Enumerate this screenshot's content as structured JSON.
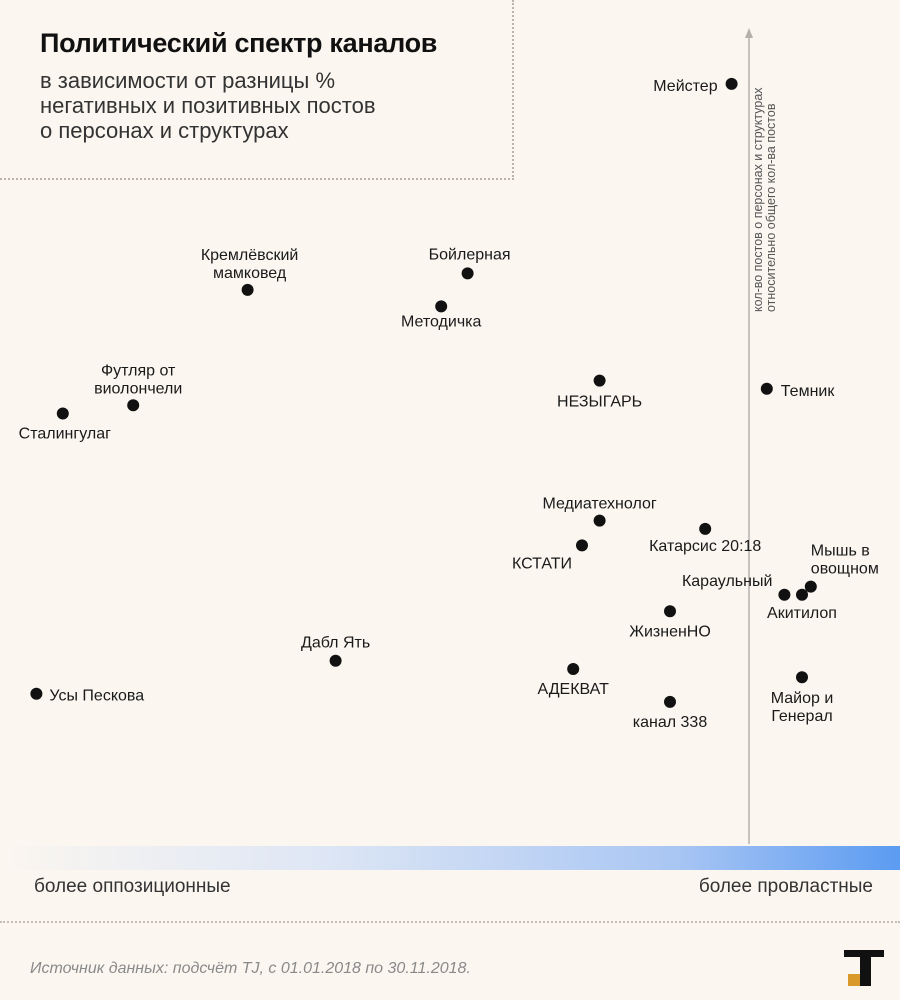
{
  "title": "Политический спектр каналов",
  "subtitle_lines": [
    "в зависимости от разницы %",
    "негативных и позитивных постов",
    "о персонах и структурах"
  ],
  "source": "Источник данных: подсчёт TJ, с 01.01.2018 по 30.11.2018.",
  "colors": {
    "background": "#fbf6f0",
    "point": "#111111",
    "gradient_end": "#5b9bf2"
  },
  "chart_data": {
    "type": "scatter",
    "title": "Политический спектр каналов",
    "subtitle": "в зависимости от разницы % негативных и позитивных постов о персонах и структурах",
    "xlabel_left": "более оппозиционные",
    "xlabel_right": "более провластные",
    "ylabel_lines": [
      "кол-во постов о персонах и структурах",
      "относительно общего кол-ва постов"
    ],
    "grid": false,
    "points": [
      {
        "label_lines": [
          "Мейстер"
        ],
        "x": 0.82,
        "y": 0.92
      },
      {
        "label_lines": [
          "Бойлерная"
        ],
        "x": 0.52,
        "y": 0.69
      },
      {
        "label_lines": [
          "Кремлёвский",
          "мамковед"
        ],
        "x": 0.27,
        "y": 0.67
      },
      {
        "label_lines": [
          "Методичка"
        ],
        "x": 0.49,
        "y": 0.65
      },
      {
        "label_lines": [
          "Футляр от",
          "виолончели"
        ],
        "x": 0.14,
        "y": 0.53
      },
      {
        "label_lines": [
          "Сталингулаг"
        ],
        "x": 0.06,
        "y": 0.52
      },
      {
        "label_lines": [
          "НЕЗЫГАРЬ"
        ],
        "x": 0.67,
        "y": 0.56
      },
      {
        "label_lines": [
          "Темник"
        ],
        "x": 0.86,
        "y": 0.55
      },
      {
        "label_lines": [
          "Медиатехнолог"
        ],
        "x": 0.67,
        "y": 0.39
      },
      {
        "label_lines": [
          "Катарсис 20:18"
        ],
        "x": 0.79,
        "y": 0.38
      },
      {
        "label_lines": [
          "КСТАТИ"
        ],
        "x": 0.65,
        "y": 0.36
      },
      {
        "label_lines": [
          "Мышь в",
          "овощном"
        ],
        "x": 0.91,
        "y": 0.31
      },
      {
        "label_lines": [
          "Караульный"
        ],
        "x": 0.88,
        "y": 0.3
      },
      {
        "label_lines": [
          "Акитилоп"
        ],
        "x": 0.9,
        "y": 0.3
      },
      {
        "label_lines": [
          "ЖизненНО"
        ],
        "x": 0.75,
        "y": 0.28
      },
      {
        "label_lines": [
          "Дабл Ять"
        ],
        "x": 0.37,
        "y": 0.22
      },
      {
        "label_lines": [
          "АДЕКВАТ"
        ],
        "x": 0.64,
        "y": 0.21
      },
      {
        "label_lines": [
          "Майор и",
          "Генерал"
        ],
        "x": 0.9,
        "y": 0.2
      },
      {
        "label_lines": [
          "Усы Пескова"
        ],
        "x": 0.03,
        "y": 0.18
      },
      {
        "label_lines": [
          "канал 338"
        ],
        "x": 0.75,
        "y": 0.17
      }
    ]
  }
}
